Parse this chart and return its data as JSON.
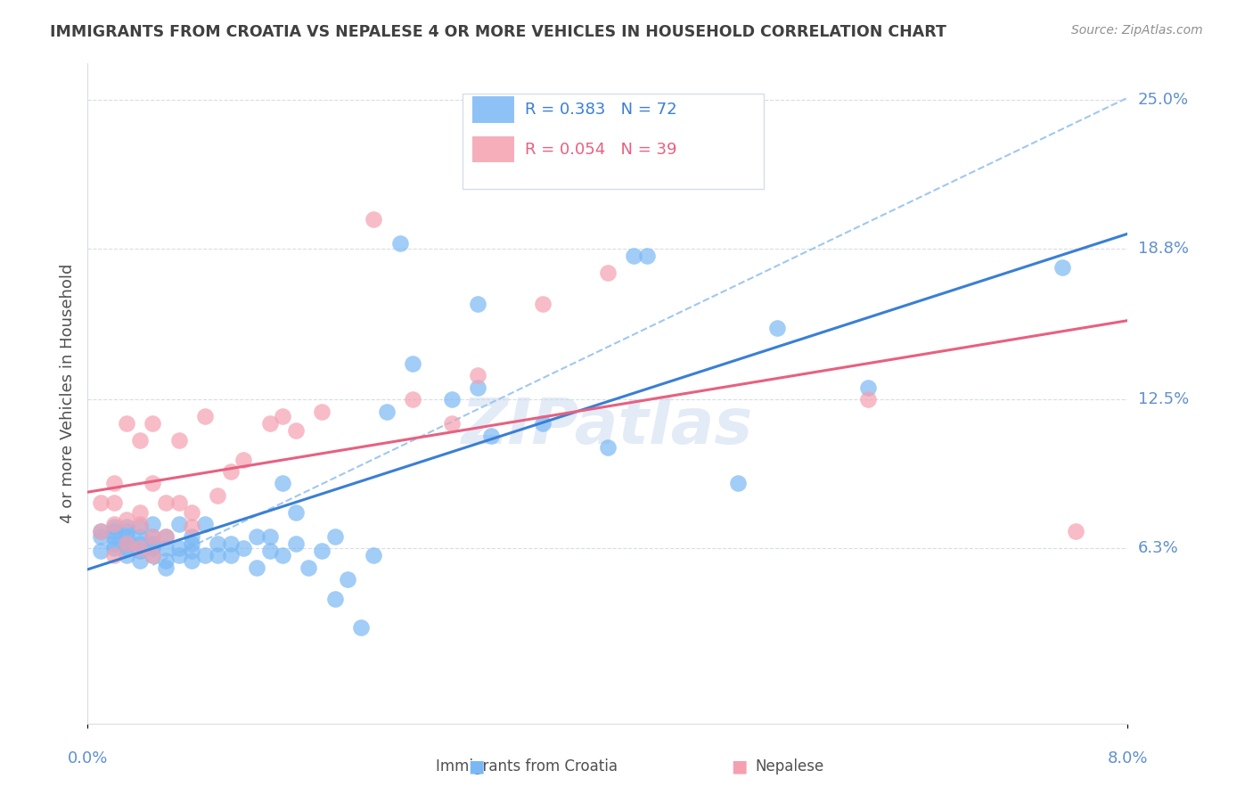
{
  "title": "IMMIGRANTS FROM CROATIA VS NEPALESE 4 OR MORE VEHICLES IN HOUSEHOLD CORRELATION CHART",
  "source": "Source: ZipAtlas.com",
  "xlabel_bottom": "",
  "ylabel": "4 or more Vehicles in Household",
  "x_tick_labels": [
    "0.0%",
    "8.0%"
  ],
  "y_tick_labels": [
    "6.3%",
    "12.5%",
    "18.8%",
    "25.0%"
  ],
  "y_tick_values": [
    0.063,
    0.125,
    0.188,
    0.25
  ],
  "x_min": 0.0,
  "x_max": 0.08,
  "y_min": -0.01,
  "y_max": 0.265,
  "legend_entries": [
    {
      "label": "R = 0.383   N = 72",
      "color": "#6aaee8"
    },
    {
      "label": "R = 0.054   N = 39",
      "color": "#f08898"
    }
  ],
  "series1_color": "#7ab8f5",
  "series2_color": "#f5a0b0",
  "trendline1_color": "#3a7fd4",
  "trendline2_color": "#e86080",
  "dashed_line_color": "#a0c8f0",
  "grid_color": "#d8dce8",
  "background_color": "#ffffff",
  "watermark": "ZIPatlas",
  "watermark_color": "#c8d8f0",
  "title_color": "#404040",
  "right_label_color": "#6090d0",
  "source_color": "#909090",
  "series1_x": [
    0.001,
    0.001,
    0.001,
    0.002,
    0.002,
    0.002,
    0.002,
    0.002,
    0.003,
    0.003,
    0.003,
    0.003,
    0.003,
    0.003,
    0.004,
    0.004,
    0.004,
    0.004,
    0.004,
    0.005,
    0.005,
    0.005,
    0.005,
    0.005,
    0.006,
    0.006,
    0.006,
    0.006,
    0.007,
    0.007,
    0.007,
    0.008,
    0.008,
    0.008,
    0.008,
    0.009,
    0.009,
    0.01,
    0.01,
    0.011,
    0.011,
    0.012,
    0.013,
    0.013,
    0.014,
    0.014,
    0.015,
    0.015,
    0.016,
    0.016,
    0.017,
    0.018,
    0.019,
    0.019,
    0.02,
    0.021,
    0.022,
    0.023,
    0.024,
    0.025,
    0.028,
    0.03,
    0.03,
    0.031,
    0.035,
    0.04,
    0.042,
    0.043,
    0.05,
    0.053,
    0.06,
    0.075
  ],
  "series1_y": [
    0.062,
    0.068,
    0.07,
    0.063,
    0.065,
    0.068,
    0.07,
    0.072,
    0.06,
    0.063,
    0.065,
    0.068,
    0.07,
    0.072,
    0.058,
    0.062,
    0.065,
    0.068,
    0.072,
    0.06,
    0.063,
    0.065,
    0.068,
    0.073,
    0.055,
    0.058,
    0.063,
    0.068,
    0.06,
    0.063,
    0.073,
    0.058,
    0.062,
    0.065,
    0.068,
    0.06,
    0.073,
    0.06,
    0.065,
    0.06,
    0.065,
    0.063,
    0.055,
    0.068,
    0.062,
    0.068,
    0.06,
    0.09,
    0.065,
    0.078,
    0.055,
    0.062,
    0.042,
    0.068,
    0.05,
    0.03,
    0.06,
    0.12,
    0.19,
    0.14,
    0.125,
    0.13,
    0.165,
    0.11,
    0.115,
    0.105,
    0.185,
    0.185,
    0.09,
    0.155,
    0.13,
    0.18
  ],
  "series2_x": [
    0.001,
    0.001,
    0.002,
    0.002,
    0.002,
    0.002,
    0.003,
    0.003,
    0.003,
    0.004,
    0.004,
    0.004,
    0.004,
    0.005,
    0.005,
    0.005,
    0.005,
    0.006,
    0.006,
    0.007,
    0.007,
    0.008,
    0.008,
    0.009,
    0.01,
    0.011,
    0.012,
    0.014,
    0.015,
    0.016,
    0.018,
    0.022,
    0.025,
    0.028,
    0.03,
    0.035,
    0.04,
    0.06,
    0.076
  ],
  "series2_y": [
    0.07,
    0.082,
    0.06,
    0.073,
    0.082,
    0.09,
    0.065,
    0.075,
    0.115,
    0.063,
    0.073,
    0.078,
    0.108,
    0.06,
    0.068,
    0.09,
    0.115,
    0.068,
    0.082,
    0.082,
    0.108,
    0.072,
    0.078,
    0.118,
    0.085,
    0.095,
    0.1,
    0.115,
    0.118,
    0.112,
    0.12,
    0.2,
    0.125,
    0.115,
    0.135,
    0.165,
    0.178,
    0.125,
    0.07
  ]
}
